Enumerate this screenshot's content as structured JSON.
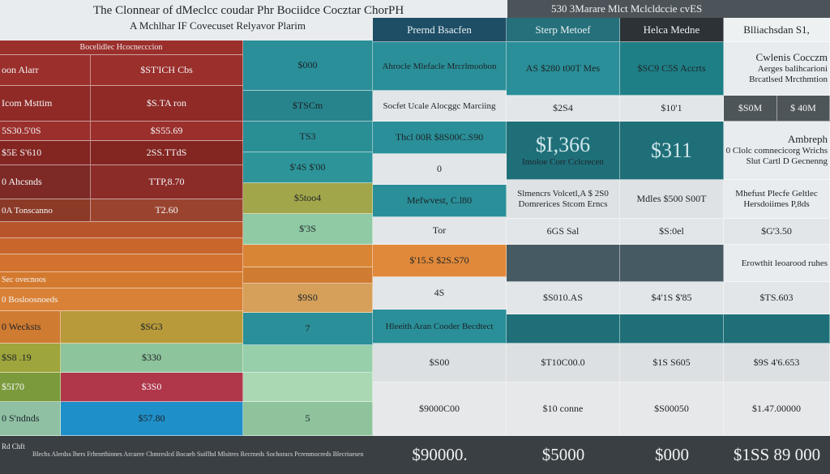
{
  "title": {
    "line1": "The Clonnear of dMeclcc coudar Phr Bociidce Cocztar ChorPH",
    "line2": "A Mchlhar IF Covecuset Relyavor Plarim"
  },
  "top_right_caption": "530 3Marare Mlct Mclcldccie cvES",
  "col_headers": [
    "Prernd Bsacfen",
    "Sterp Metoef",
    "Helca Medne",
    "Blliachsdan S1,"
  ],
  "left_subheader": "Bocelidlec Hcocnecccion",
  "right_notes": {
    "note1_title": "Cwlenis Cocczm",
    "note1_body": [
      "Aerges balihcarioni",
      "Brcatlsed Mrcthmtion"
    ],
    "note2_title": "Ambreph",
    "note2_body": [
      "0 Clolc comnecicorg Wrichs",
      "Slut Cartl D Gecnenng"
    ],
    "note3": [
      "Mhefust Plecfe Geltlec",
      "Hersdoiimes P,8ds"
    ],
    "note4": "Erowthit leoarood ruhes"
  },
  "left_table": [
    [
      "oon Alarr",
      "$ST'ICH Cbs"
    ],
    [
      "Icom Msttim",
      "$S.TA ron"
    ],
    [
      "5S30.5'0S",
      "$S55.69"
    ],
    [
      "$5E S'610",
      "2SS.TTdS"
    ],
    [
      "0 Ahcsnds",
      "TTP,8.70"
    ],
    [
      "0A Tonscanno",
      "T2.60"
    ],
    [
      "",
      ""
    ],
    [
      "",
      ""
    ],
    [
      "",
      ""
    ],
    [
      "Sec ovecnoos",
      ""
    ],
    [
      "0 Bosloosnoeds",
      ""
    ],
    [
      "0 Wecksts",
      "$SG3"
    ],
    [
      "$S8 .19",
      "$330"
    ],
    [
      "$5I70",
      "$3S0"
    ],
    [
      "0 S'ndnds",
      "$57.80"
    ]
  ],
  "teal_col": [
    "$000",
    "$TSCm",
    "TS3",
    "$'4S $'00",
    "$5too4",
    "$'3S",
    "",
    "",
    "$9S0",
    "7",
    "",
    "",
    "5"
  ],
  "mid_cells": {
    "r1": "Ahrocle Mlefacle Mrcrlmoobon",
    "r2": "Socfet Ucale Alocggc Marciing",
    "r3": "Thcl 00R $8S00C.S90",
    "r4": "0",
    "r5": "Mefwvest, C.l80",
    "r6": "Tor",
    "r7": "$'15.S $2S.S70",
    "r8": "4S",
    "r9": "Hleeith Aran Cooder Becdtect",
    "r10": "$S00",
    "r11": "$9000C00"
  },
  "c2_cells": {
    "r1": "AS $280 t00T Mes",
    "r2": "$2S4",
    "r3_big": "$I,366",
    "r3_small": "Imoloe Corr Cclcrecen",
    "r4": [
      "Slmencrs Volcetl,A $ 2S0",
      "Domrerices Stcom Erncs"
    ],
    "r5": "6GS Sal",
    "r6": "$S010.AS",
    "r7": "$T10C00.0",
    "r8": "$10 conne"
  },
  "c3_cells": {
    "r1": "$SC9 C5S Accrts",
    "r2": "$10'1",
    "r3_big": "$311",
    "r4": "Mdles $500 S00T",
    "r5": "$S:0el",
    "r6": "$4'1S $'85",
    "r7": "$1S S605",
    "r8": "$S00050"
  },
  "c4_cells": {
    "r2a": "$S0M",
    "r2b": "$ 40M",
    "r5": "$G'3.50",
    "r6": "$TS.603",
    "r7": "$9S 4'6.653",
    "r8": "$1.47.00000"
  },
  "footer": {
    "small_left": "Rd Chft",
    "small_text": "Blechs Alerdss lhers Frhrnrthinnes Arcuere Cbmreslcd Bocaeh Suiflhd Mlsitres Recrneds Sochoracs Pcrenmocreds Blecriuesen",
    "totals": [
      "$90000.",
      "$5000",
      "$000",
      "$1SS 89 000"
    ]
  },
  "colors": {
    "red": "#9a2f2c",
    "red_dark": "#832521",
    "orange": "#d47a2f",
    "olive": "#b89a3a",
    "green_light": "#8ec49b",
    "blue": "#1f8fc9",
    "teal": "#1f7f86",
    "slate": "#3e5660",
    "charcoal": "#3d4246",
    "grey_row": "#dcdfe1"
  }
}
